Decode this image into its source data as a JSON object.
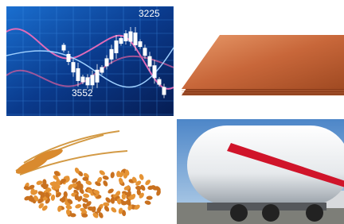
{
  "stock_panel": {
    "labels": [
      "3225",
      "3552"
    ]
  }
}
